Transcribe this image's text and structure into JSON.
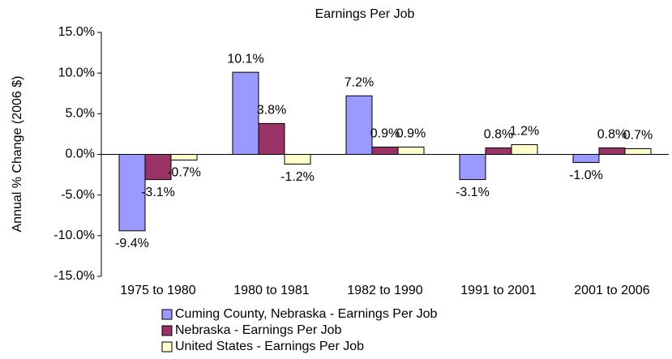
{
  "chart_data": {
    "type": "bar",
    "title": "Earnings Per Job",
    "y_label": "Annual % Change (2006 $)",
    "categories": [
      "1975 to 1980",
      "1980 to 1981",
      "1982 to 1990",
      "1991 to 2001",
      "2001 to 2006"
    ],
    "series": [
      {
        "name": "Cuming County, Nebraska - Earnings Per Job",
        "color": "#9999ff",
        "values": [
          -9.4,
          10.1,
          7.2,
          -3.1,
          -1.0
        ],
        "value_labels": [
          "-9.4%",
          "10.1%",
          "7.2%",
          "-3.1%",
          "-1.0%"
        ]
      },
      {
        "name": "Nebraska - Earnings Per Job",
        "color": "#993366",
        "values": [
          -3.1,
          3.8,
          0.9,
          0.8,
          0.8
        ],
        "value_labels": [
          "-3.1%",
          "3.8%",
          "0.9%",
          "0.8%",
          "0.8%"
        ]
      },
      {
        "name": "United States - Earnings Per Job",
        "color": "#ffffcc",
        "values": [
          -0.7,
          -1.2,
          0.9,
          1.2,
          0.7
        ],
        "value_labels": [
          "-0.7%",
          "-1.2%",
          "0.9%",
          "1.2%",
          "0.7%"
        ]
      }
    ],
    "ylim": [
      -15,
      15
    ],
    "yticks": [
      {
        "value": -15,
        "label": "-15.0%"
      },
      {
        "value": -10,
        "label": "-10.0%"
      },
      {
        "value": -5,
        "label": "-5.0%"
      },
      {
        "value": 0,
        "label": "0.0%"
      },
      {
        "value": 5,
        "label": "5.0%"
      },
      {
        "value": 10,
        "label": "10.0%"
      },
      {
        "value": 15,
        "label": "15.0%"
      }
    ],
    "grid": false
  }
}
